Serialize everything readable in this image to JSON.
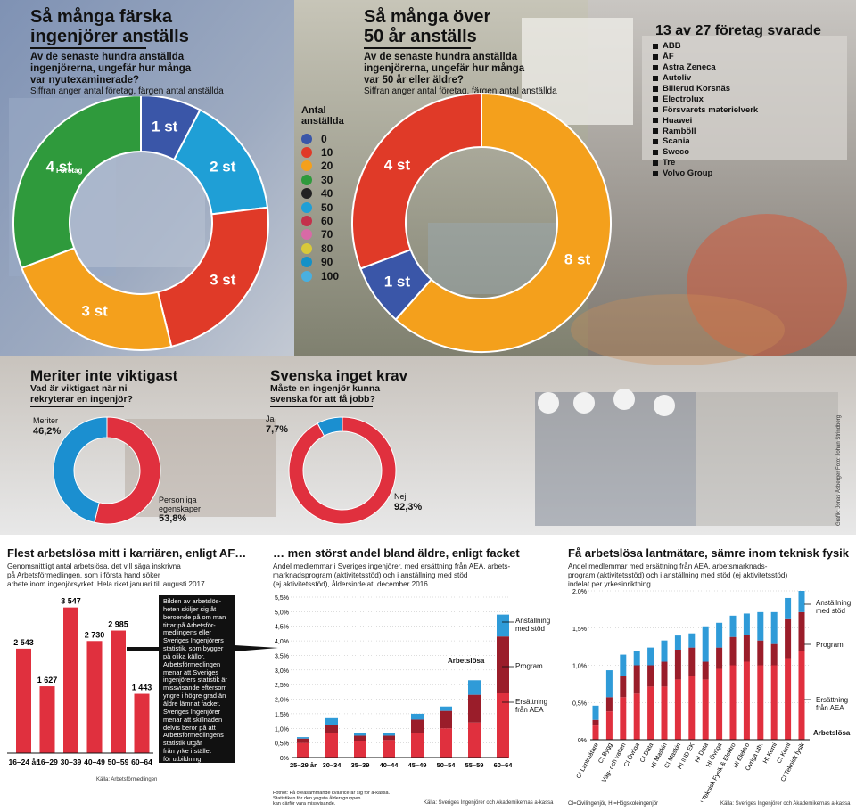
{
  "top_left": {
    "title_line1": "Så många färska",
    "title_line2": "ingenjörer anställs",
    "question_line1": "Av de senaste hundra anställda",
    "question_line2": "ingenjörerna, ungefär hur många",
    "question_line3": "var nyutexaminerade?",
    "subtitle": "Siffran anger antal företag, färgen antal anställda",
    "foretag_label": "Företag"
  },
  "top_mid": {
    "title_line1": "Så många över",
    "title_line2": "50 år anställs",
    "question_line1": "Av de senaste hundra anställda",
    "question_line2": "ingenjörerna, ungefär hur många",
    "question_line3": "var 50 år eller äldre?",
    "subtitle": "Siffran anger antal företag, färgen antal anställda"
  },
  "legend": {
    "title_line1": "Antal",
    "title_line2": "anställda",
    "items": [
      {
        "label": "0",
        "color": "#3a56a8"
      },
      {
        "label": "10",
        "color": "#e03a28"
      },
      {
        "label": "20",
        "color": "#f4a01c"
      },
      {
        "label": "30",
        "color": "#2f9a3c"
      },
      {
        "label": "40",
        "color": "#222222"
      },
      {
        "label": "50",
        "color": "#1f9fd6"
      },
      {
        "label": "60",
        "color": "#c4314b"
      },
      {
        "label": "70",
        "color": "#d86aa6"
      },
      {
        "label": "80",
        "color": "#d8c93a"
      },
      {
        "label": "90",
        "color": "#1491c8"
      },
      {
        "label": "100",
        "color": "#49b0e0"
      }
    ]
  },
  "companies": {
    "title": "13 av 27 företag svarade",
    "items": [
      "ABB",
      "ÅF",
      "Astra Zeneca",
      "Autoliv",
      "Billerud Korsnäs",
      "Electrolux",
      "Försvarets materielverk",
      "Huawei",
      "Ramböll",
      "Scania",
      "Sweco",
      "Tre",
      "Volvo Group"
    ]
  },
  "meriter": {
    "title": "Meriter inte viktigast",
    "question_line1": "Vad är viktigast när ni",
    "question_line2": "rekryterar en ingenjör?",
    "label_a": "Meriter",
    "value_a": "46,2%",
    "label_b1": "Personliga",
    "label_b2": "egenskaper",
    "value_b": "53,8%"
  },
  "svenska": {
    "title": "Svenska inget krav",
    "question_line1": "Måste en ingenjör kunna",
    "question_line2": "svenska för att få jobb?",
    "label_a": "Ja",
    "value_a": "7,7%",
    "label_b": "Nej",
    "value_b": "92,3%"
  },
  "photo_credit": "Grafik: Jonas Åsberger   Foto: Johan Strindberg",
  "bottom1": {
    "title": "Flest arbetslösa mitt i karriären, enligt AF…",
    "sub_line1": "Genomsnittligt antal arbetslösa, det vill säga inskrivna",
    "sub_line2": "på Arbetsförmedlingen, som i första hand söker",
    "sub_line3": "arbete inom ingenjörsyrket. Hela riket januari till augusti 2017.",
    "source": "Källa: Arbetsförmedlingen",
    "note_lines": [
      "Bilden av arbetslös-",
      "heten skiljer sig åt",
      "beroende på om man",
      "tittar på Arbetsför-",
      "medlingens eller",
      "Sveriges Ingenjörers",
      "statistik, som bygger",
      "på olika källor.",
      "Arbetsförmedlingen",
      "menar att Sveriges",
      "ingenjörers statistik är",
      "missvisande eftersom",
      "yngre i högre grad än",
      "äldre lämnat facket.",
      "Sveriges Ingenjörer",
      "menar att skillnaden",
      "delvis beror på att",
      "Arbetsförmedlingens",
      "statistik utgår",
      "från yrke i stället",
      "för utbildning."
    ]
  },
  "bottom2": {
    "title": "… men störst andel bland äldre, enligt facket",
    "sub_line1": "Andel medlemmar i Sveriges ingenjörer, med ersättning från AEA, arbets-",
    "sub_line2": "marknadsprogram (aktivitetsstöd) och i anställning med stöd",
    "sub_line3": "(ej aktivitetsstöd), åldersindelat, december 2016.",
    "ann_stod_1": "Anställning",
    "ann_stod_2": "med stöd",
    "ann_program": "Program",
    "ann_aea_1": "Ersättning",
    "ann_aea_2": "från AEA",
    "ann_arbetslosa": "Arbetslösa",
    "foot_line1": "Fotnot: Få ofeasammande kvalificerar sig för a-kassa.",
    "foot_line2": "Statistiken för den yngsta åldersgruppen",
    "foot_line3": "kan därför vara missvisande.",
    "source": "Källa: Sveriges Ingenjörer och Akademikernas a-kassa"
  },
  "bottom3": {
    "title": "Få arbetslösa lantmätare, sämre inom teknisk fysik",
    "sub_line1": "Andel medlemmar med ersättning från AEA, arbetsmarknads-",
    "sub_line2": "program (aktivitetsstöd) och i anställning med stöd (ej aktivitetsstöd)",
    "sub_line3": "indelat per yrkesinriktning.",
    "ann_stod_1": "Anställning",
    "ann_stod_2": "med stöd",
    "ann_program": "Program",
    "ann_aea_1": "Ersättning",
    "ann_aea_2": "från AEA",
    "ann_arbetslosa": "Arbetslösa",
    "foot": "CI=Civilingenjör, HI=Högskoleingenjör",
    "source": "Källa: Sveriges Ingenjörer och Akademikernas a-kassa"
  },
  "chart_data": [
    {
      "type": "pie",
      "id": "donut_nyutexaminerade",
      "slices": [
        {
          "label": "1 st",
          "value": 1,
          "color": "#3a56a8"
        },
        {
          "label": "2 st",
          "value": 2,
          "color": "#1f9fd6"
        },
        {
          "label": "3 st",
          "value": 3,
          "color": "#e03a28"
        },
        {
          "label": "3 st",
          "value": 3,
          "color": "#f4a01c"
        },
        {
          "label": "4 st",
          "value": 4,
          "color": "#2f9a3c"
        }
      ]
    },
    {
      "type": "pie",
      "id": "donut_over50",
      "slices": [
        {
          "label": "8 st",
          "value": 8,
          "color": "#f4a01c"
        },
        {
          "label": "1 st",
          "value": 1,
          "color": "#3a56a8"
        },
        {
          "label": "4 st",
          "value": 4,
          "color": "#e03a28"
        }
      ]
    },
    {
      "type": "pie",
      "id": "donut_meriter",
      "slices": [
        {
          "label": "Personliga egenskaper",
          "value": 53.8,
          "color": "#e0303e"
        },
        {
          "label": "Meriter",
          "value": 46.2,
          "color": "#1b8fd0"
        }
      ]
    },
    {
      "type": "pie",
      "id": "donut_svenska",
      "slices": [
        {
          "label": "Nej",
          "value": 92.3,
          "color": "#e0303e"
        },
        {
          "label": "Ja",
          "value": 7.7,
          "color": "#1b8fd0"
        }
      ]
    },
    {
      "type": "bar",
      "id": "arbetslosa_af",
      "categories": [
        "16–24 år",
        "16–29",
        "30–39",
        "40–49",
        "50–59",
        "60–64"
      ],
      "values": [
        2543,
        1627,
        3547,
        2730,
        2985,
        1443
      ],
      "value_labels": [
        "2 543",
        "1 627",
        "3 547",
        "2 730",
        "2 985",
        "1 443"
      ],
      "ylim": [
        0,
        3800
      ]
    },
    {
      "type": "bar",
      "id": "andel_alder",
      "stacked": true,
      "categories": [
        "25–29 år",
        "30–34",
        "35–39",
        "40–44",
        "45–49",
        "50–54",
        "55–59",
        "60–64"
      ],
      "y_ticks": [
        "0%",
        "0,5%",
        "1,0%",
        "1,5%",
        "2,0%",
        "2,5%",
        "3,0%",
        "3,5%",
        "4,0%",
        "4,5%",
        "5,0%",
        "5,5%"
      ],
      "ylim": [
        0,
        5.5
      ],
      "series": [
        {
          "name": "Ersättning från AEA",
          "color": "#e0303e",
          "values": [
            0.5,
            0.85,
            0.55,
            0.6,
            0.85,
            1.0,
            1.2,
            2.2
          ]
        },
        {
          "name": "Program",
          "color": "#9a1d2a",
          "values": [
            0.15,
            0.25,
            0.2,
            0.15,
            0.45,
            0.6,
            0.95,
            1.95
          ]
        },
        {
          "name": "Anställning med stöd",
          "color": "#2f9bd8",
          "values": [
            0.05,
            0.25,
            0.1,
            0.1,
            0.2,
            0.15,
            0.5,
            0.75
          ]
        }
      ]
    },
    {
      "type": "bar",
      "id": "andel_yrke",
      "stacked": true,
      "categories": [
        "CI Lantmätare",
        "CI Bygg",
        "Väg- och vatten",
        "CI Övriga",
        "CI Data",
        "HI Maskin",
        "CI Maskin",
        "HI IND EK",
        "HI Data",
        "HI Övriga",
        "CI Teknisk Fysik & Elektro",
        "HI Elektro",
        "Övriga utb.",
        "HI Kemi",
        "CI Kemi",
        "CI Teknisk fysik"
      ],
      "y_ticks": [
        "0%",
        "0,5%",
        "1,0%",
        "1,5%",
        "2,0%"
      ],
      "ylim": [
        0,
        2.1
      ],
      "series": [
        {
          "name": "Ersättning från AEA",
          "color": "#e0303e",
          "values": [
            0.2,
            0.4,
            0.6,
            0.65,
            0.75,
            0.75,
            0.85,
            0.9,
            0.85,
            1.0,
            1.05,
            1.1,
            1.05,
            1.05,
            1.15,
            1.25
          ]
        },
        {
          "name": "Program",
          "color": "#9a1d2a",
          "values": [
            0.08,
            0.2,
            0.3,
            0.4,
            0.3,
            0.35,
            0.42,
            0.4,
            0.25,
            0.3,
            0.4,
            0.38,
            0.35,
            0.3,
            0.55,
            0.55
          ]
        },
        {
          "name": "Anställning med stöd",
          "color": "#2f9bd8",
          "values": [
            0.2,
            0.38,
            0.3,
            0.2,
            0.25,
            0.3,
            0.2,
            0.2,
            0.5,
            0.35,
            0.3,
            0.3,
            0.4,
            0.45,
            0.3,
            0.3
          ]
        }
      ]
    }
  ]
}
